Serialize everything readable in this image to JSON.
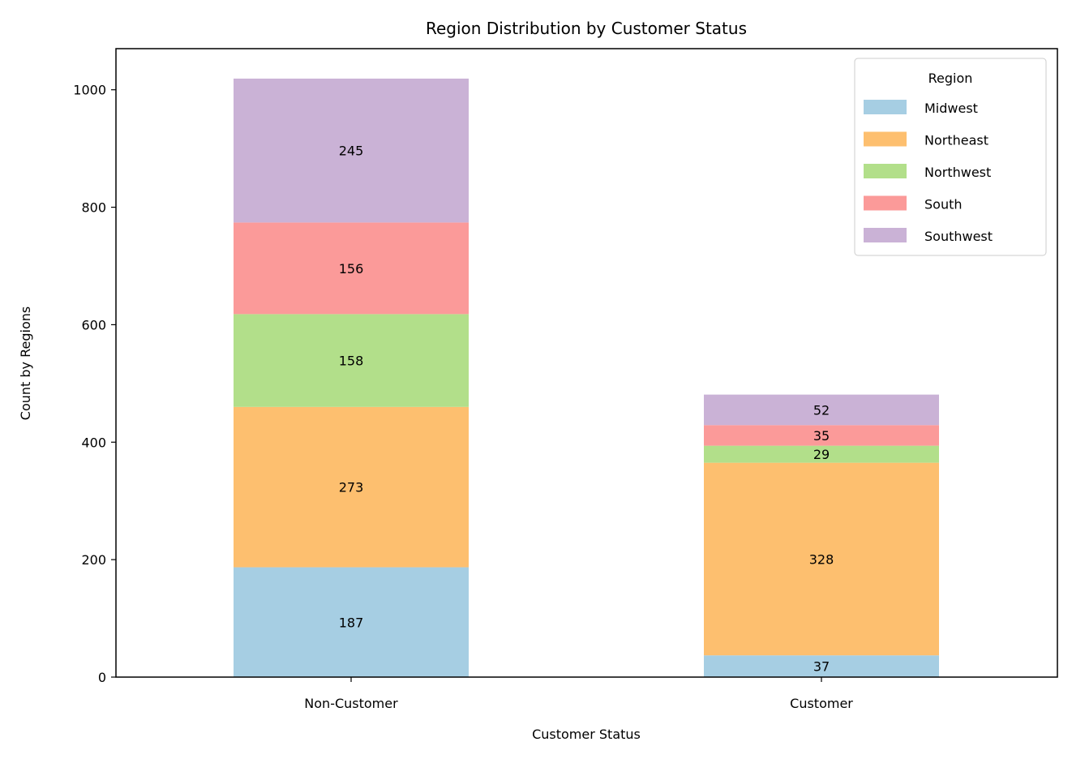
{
  "chart_data": {
    "type": "bar",
    "stacked": true,
    "title": "Region Distribution by Customer Status",
    "xlabel": "Customer Status",
    "ylabel": "Count by Regions",
    "categories": [
      "Non-Customer",
      "Customer"
    ],
    "ylim": [
      0,
      1070
    ],
    "yticks": [
      0,
      200,
      400,
      600,
      800,
      1000
    ],
    "grid": false,
    "legend": {
      "title": "Region",
      "placement": "top-right"
    },
    "series": [
      {
        "name": "Midwest",
        "values": [
          187,
          37
        ],
        "color": "#a6cee3"
      },
      {
        "name": "Northeast",
        "values": [
          273,
          328
        ],
        "color": "#fdbf6f"
      },
      {
        "name": "Northwest",
        "values": [
          158,
          29
        ],
        "color": "#b2df8a"
      },
      {
        "name": "South",
        "values": [
          156,
          35
        ],
        "color": "#fb9a99"
      },
      {
        "name": "Southwest",
        "values": [
          245,
          52
        ],
        "color": "#cab2d6"
      }
    ]
  }
}
